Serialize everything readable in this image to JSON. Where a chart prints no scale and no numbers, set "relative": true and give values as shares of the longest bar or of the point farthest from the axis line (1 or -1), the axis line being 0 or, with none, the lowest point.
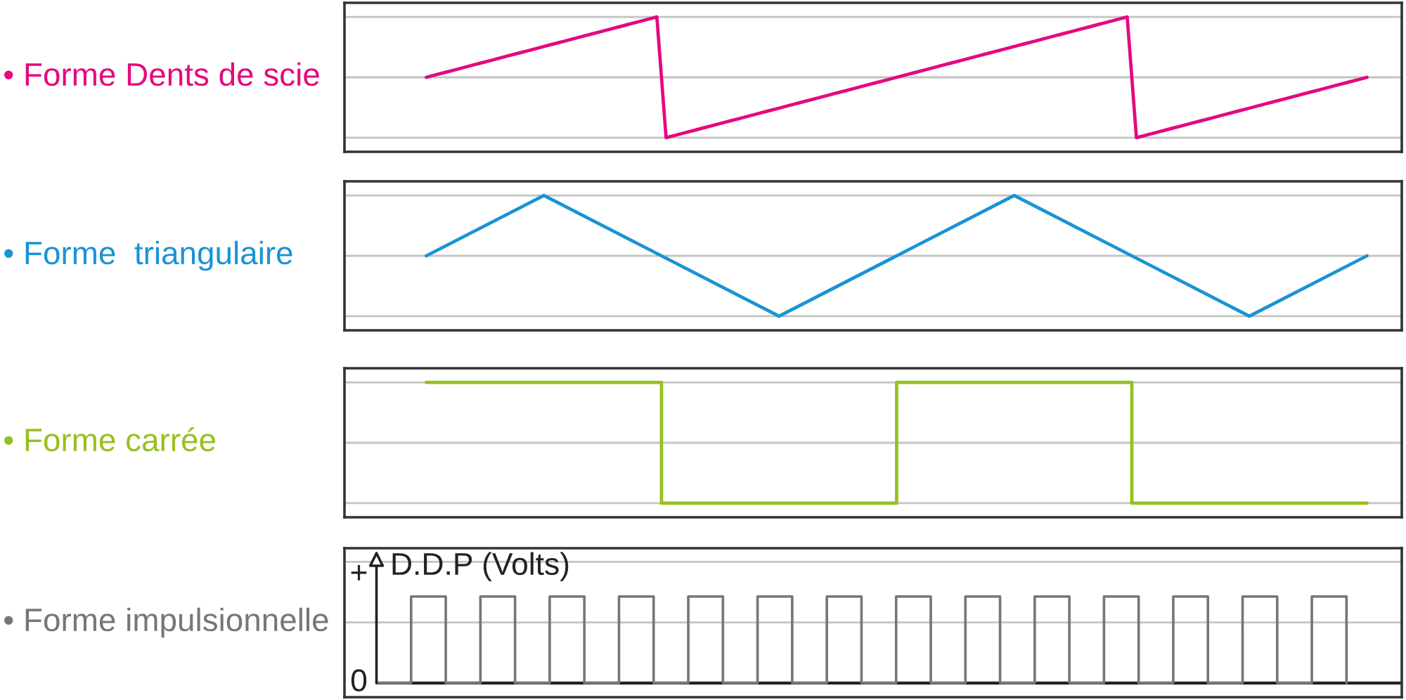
{
  "chart_data": [
    {
      "type": "line",
      "title": "• Forme Dents de scie",
      "relative": true,
      "categories": [
        null,
        null,
        null,
        null,
        null,
        null,
        null,
        null,
        null,
        null,
        null,
        null,
        null,
        null,
        null,
        null,
        null,
        null,
        null,
        null,
        null,
        null,
        null,
        null,
        null,
        null,
        null,
        null,
        null,
        null,
        null,
        null,
        null,
        null,
        null,
        null,
        null,
        null,
        null,
        null,
        null,
        null,
        null,
        null,
        null,
        null,
        null,
        null,
        null,
        null,
        null,
        null,
        null,
        null,
        null,
        null,
        null,
        null,
        null,
        null,
        null,
        null,
        null,
        null,
        null,
        null,
        null,
        null,
        null,
        null,
        null,
        null,
        null,
        null,
        null,
        null,
        null,
        null,
        null,
        null,
        null,
        null,
        null,
        null,
        null,
        null,
        null,
        null,
        null,
        null,
        null,
        null,
        null,
        null,
        null,
        null,
        null,
        null,
        null,
        null,
        null,
        null,
        null
      ],
      "series": [
        {
          "color": "#e5097f",
          "values": [
            0.5,
            0.52,
            0.54,
            0.56,
            0.58,
            0.6,
            0.62,
            0.64,
            0.66,
            0.68,
            0.7,
            0.72,
            0.74,
            0.76,
            0.78,
            0.8,
            0.82,
            0.84,
            0.86,
            0.88,
            0.9,
            0.92,
            0.94,
            0.96,
            0.98,
            1,
            0,
            0.02,
            0.04,
            0.06,
            0.08,
            0.1,
            0.12,
            0.14,
            0.16,
            0.18,
            0.2,
            0.22,
            0.24,
            0.26,
            0.28,
            0.3,
            0.32,
            0.34,
            0.36,
            0.38,
            0.4,
            0.42,
            0.44,
            0.46,
            0.48,
            0.5,
            0.52,
            0.54,
            0.56,
            0.58,
            0.6,
            0.62,
            0.64,
            0.66,
            0.68,
            0.7,
            0.72,
            0.74,
            0.76,
            0.78,
            0.8,
            0.82,
            0.84,
            0.86,
            0.88,
            0.9,
            0.92,
            0.94,
            0.96,
            0.98,
            1,
            0,
            0.02,
            0.04,
            0.06,
            0.08,
            0.1,
            0.12,
            0.14,
            0.16,
            0.18,
            0.2,
            0.22,
            0.24,
            0.26,
            0.28,
            0.3,
            0.32,
            0.34,
            0.36,
            0.38,
            0.4,
            0.42,
            0.44,
            0.46,
            0.48,
            0.5
          ]
        }
      ],
      "ref_lines": [
        {
          "axis": "y",
          "value": 0,
          "color": "#c4c4c4"
        },
        {
          "axis": "y",
          "value": 0.5,
          "color": "#c4c4c4"
        },
        {
          "axis": "y",
          "value": 1,
          "color": "#c4c4c4"
        }
      ]
    },
    {
      "type": "line",
      "title": "• Forme  triangulaire",
      "relative": true,
      "categories": [
        null,
        null,
        null,
        null,
        null,
        null,
        null,
        null,
        null
      ],
      "series": [
        {
          "color": "#1a93d6",
          "values": [
            0.5,
            1,
            0.5,
            0,
            0.5,
            1,
            0.5,
            0,
            0.5
          ]
        }
      ],
      "ref_lines": [
        {
          "axis": "y",
          "value": 0,
          "color": "#c4c4c4"
        },
        {
          "axis": "y",
          "value": 0.5,
          "color": "#c4c4c4"
        },
        {
          "axis": "y",
          "value": 1,
          "color": "#c4c4c4"
        }
      ]
    },
    {
      "type": "step",
      "title": "• Forme carrée",
      "relative": true,
      "categories": [
        null,
        null,
        null,
        null,
        null
      ],
      "series": [
        {
          "color": "#95c11f",
          "values": [
            1,
            0,
            1,
            0,
            0
          ]
        }
      ],
      "ref_lines": [
        {
          "axis": "y",
          "value": 0,
          "color": "#c4c4c4"
        },
        {
          "axis": "y",
          "value": 0.5,
          "color": "#c4c4c4"
        },
        {
          "axis": "y",
          "value": 1,
          "color": "#c4c4c4"
        }
      ]
    },
    {
      "type": "step",
      "title": "• Forme impulsionnelle",
      "ylabel": "D.D.P (Volts)",
      "relative": true,
      "categories": [
        null,
        null,
        null,
        null,
        null,
        null,
        null,
        null,
        null,
        null,
        null,
        null,
        null,
        null,
        null,
        null,
        null,
        null,
        null,
        null,
        null,
        null,
        null,
        null,
        null,
        null,
        null,
        null,
        null
      ],
      "series": [
        {
          "color": "#767676",
          "values": [
            0,
            1,
            0,
            1,
            0,
            1,
            0,
            1,
            0,
            1,
            0,
            1,
            0,
            1,
            0,
            1,
            0,
            1,
            0,
            1,
            0,
            1,
            0,
            1,
            0,
            1,
            0,
            1,
            0
          ]
        }
      ],
      "ref_lines": [
        {
          "axis": "y",
          "value": 0.7,
          "color": "#c4c4c4"
        },
        {
          "axis": "y",
          "value": 1.4,
          "color": "#c4c4c4"
        }
      ],
      "annotations": [
        "+",
        "0"
      ]
    }
  ]
}
